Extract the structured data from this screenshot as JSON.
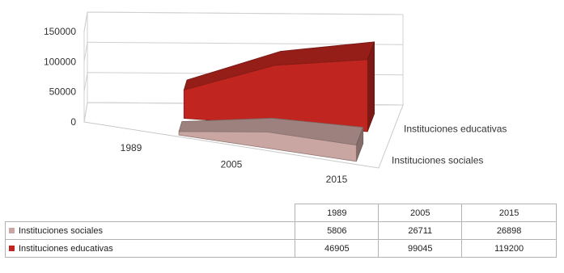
{
  "chart_data": {
    "type": "area",
    "subtype": "3d-area",
    "categories": [
      "1989",
      "2005",
      "2015"
    ],
    "yticks": [
      "0",
      "50000",
      "100000",
      "150000"
    ],
    "ylim": [
      0,
      150000
    ],
    "grid": true,
    "legend": "table below chart",
    "series": [
      {
        "name": "Instituciones sociales",
        "values": [
          5806,
          26711,
          26898
        ],
        "color": "#c9a6a1"
      },
      {
        "name": "Instituciones educativas",
        "values": [
          46905,
          99045,
          119200
        ],
        "color": "#c0261f"
      }
    ]
  },
  "table": {
    "header": [
      "1989",
      "2005",
      "2015"
    ],
    "rows": [
      {
        "label": "Instituciones sociales",
        "cells": [
          "5806",
          "26711",
          "26898"
        ],
        "color": "#c9a6a1"
      },
      {
        "label": "Instituciones educativas",
        "cells": [
          "46905",
          "99045",
          "119200"
        ],
        "color": "#c0261f"
      }
    ]
  }
}
